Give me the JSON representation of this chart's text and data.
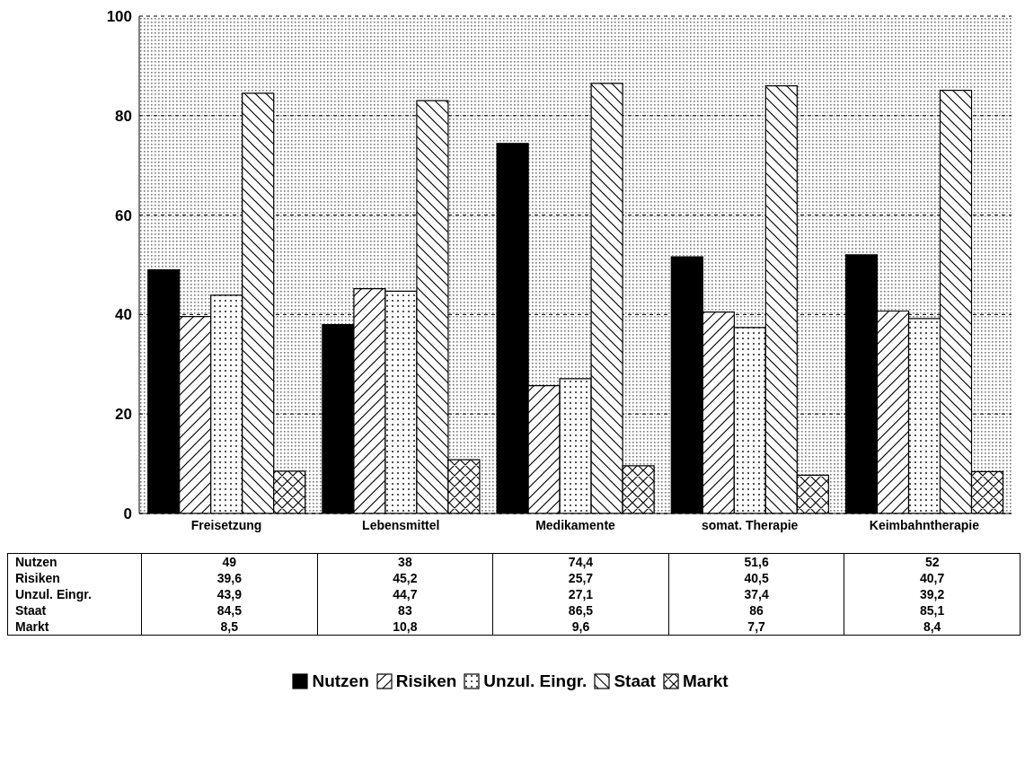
{
  "chart_data": {
    "type": "bar",
    "categories": [
      "Freisetzung",
      "Lebensmittel",
      "Medikamente",
      "somat. Therapie",
      "Keimbahntherapie"
    ],
    "series": [
      {
        "name": "Nutzen",
        "color": "#000000",
        "values": [
          49,
          38,
          74.4,
          51.6,
          52
        ],
        "value_labels": [
          "49",
          "38",
          "74,4",
          "51,6",
          "52"
        ]
      },
      {
        "name": "Risiken",
        "color": "#000000",
        "values": [
          39.6,
          45.2,
          25.7,
          40.5,
          40.7
        ],
        "value_labels": [
          "39,6",
          "45,2",
          "25,7",
          "40,5",
          "40,7"
        ]
      },
      {
        "name": "Unzul. Eingr.",
        "color": "#000000",
        "values": [
          43.9,
          44.7,
          27.1,
          37.4,
          39.2
        ],
        "value_labels": [
          "43,9",
          "44,7",
          "27,1",
          "37,4",
          "39,2"
        ]
      },
      {
        "name": "Staat",
        "color": "#000000",
        "values": [
          84.5,
          83,
          86.5,
          86,
          85.1
        ],
        "value_labels": [
          "84,5",
          "83",
          "86,5",
          "86",
          "85,1"
        ]
      },
      {
        "name": "Markt",
        "color": "#000000",
        "values": [
          8.5,
          10.8,
          9.6,
          7.7,
          8.4
        ],
        "value_labels": [
          "8,5",
          "10,8",
          "9,6",
          "7,7",
          "8,4"
        ]
      }
    ],
    "ylim": [
      0,
      100
    ],
    "yticks": [
      0,
      20,
      40,
      60,
      80,
      100
    ],
    "grid": "y",
    "legend": "bottom"
  }
}
